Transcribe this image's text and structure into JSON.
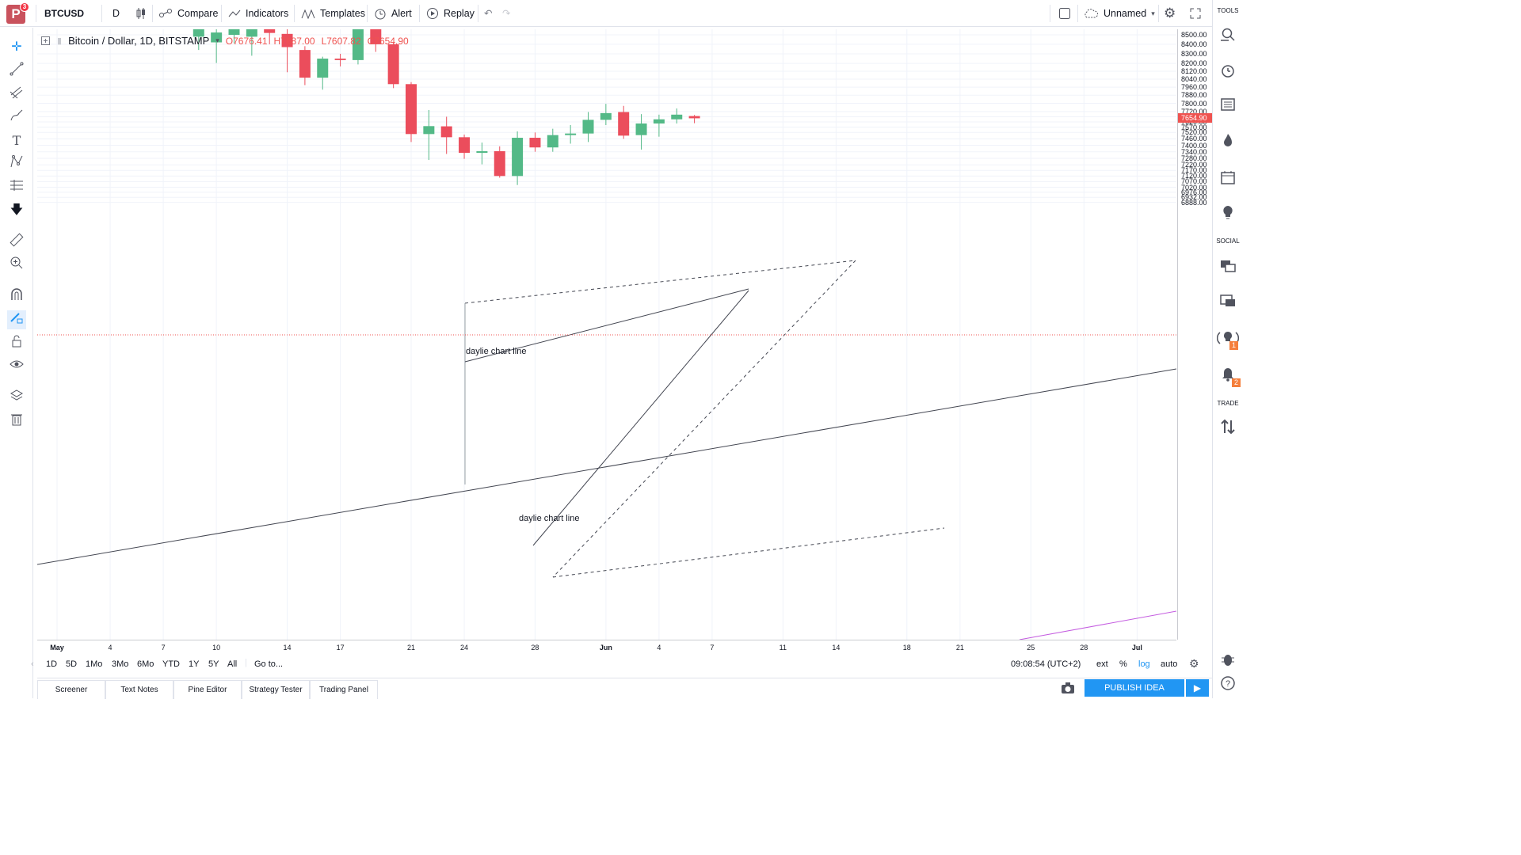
{
  "toolbar": {
    "logo_letter": "P",
    "logo_badge": "3",
    "symbol": "BTCUSD",
    "interval": "D",
    "compare_label": "Compare",
    "indicators_label": "Indicators",
    "templates_label": "Templates",
    "alert_label": "Alert",
    "replay_label": "Replay",
    "layout_name": "Unnamed"
  },
  "legend": {
    "title": "Bitcoin / Dollar, 1D, BITSTAMP",
    "open": "O7676.41",
    "high": "H7687.00",
    "low": "L7607.82",
    "close": "C7654.90"
  },
  "price_axis": {
    "labels": [
      "8500.00",
      "8400.00",
      "8300.00",
      "8200.00",
      "8120.00",
      "8040.00",
      "7960.00",
      "7880.00",
      "7800.00",
      "7720.00",
      "7670.00",
      "7620.00",
      "7570.00",
      "7520.00",
      "7460.00",
      "7400.00",
      "7340.00",
      "7280.00",
      "7220.00",
      "7170.00",
      "7120.00",
      "7070.00",
      "7020.00",
      "6976.00",
      "6932.00",
      "6888.00"
    ],
    "current": "7654.90"
  },
  "time_axis": {
    "labels": [
      "May",
      "4",
      "7",
      "10",
      "14",
      "17",
      "21",
      "24",
      "28",
      "Jun",
      "4",
      "7",
      "11",
      "14",
      "18",
      "21",
      "25",
      "28",
      "Jul"
    ]
  },
  "annotations": {
    "label1": "daylie chart line",
    "label2": "daylie chart line"
  },
  "range_bar": {
    "ranges": [
      "1D",
      "5D",
      "1Mo",
      "3Mo",
      "6Mo",
      "YTD",
      "1Y",
      "5Y",
      "All"
    ],
    "goto": "Go to...",
    "clock": "09:08:54 (UTC+2)",
    "ext": "ext",
    "pct": "%",
    "log": "log",
    "auto": "auto"
  },
  "bottom_tabs": [
    "Screener",
    "Text Notes",
    "Pine Editor",
    "Strategy Tester",
    "Trading Panel"
  ],
  "publish_label": "PUBLISH IDEA",
  "right_panel": {
    "tools_label": "TOOLS",
    "social_label": "SOCIAL",
    "trade_label": "TRADE",
    "badge_1": "1",
    "badge_2": "2"
  },
  "colors": {
    "up": "#53b987",
    "down": "#eb4d5c",
    "accent": "#2196f3",
    "price_line": "#ef5350",
    "purple_line": "#c45ce0"
  },
  "chart_data": {
    "type": "candlestick",
    "symbol": "BTCUSD",
    "interval": "1D",
    "exchange": "BITSTAMP",
    "scale": "log",
    "candles": [
      {
        "date": "2018-05-09",
        "open": 8480,
        "high": 8630,
        "low": 8340,
        "close": 8625
      },
      {
        "date": "2018-05-10",
        "open": 8420,
        "high": 8570,
        "low": 8205,
        "close": 8525
      },
      {
        "date": "2018-05-11",
        "open": 8500,
        "high": 8610,
        "low": 8410,
        "close": 8610
      },
      {
        "date": "2018-05-12",
        "open": 8480,
        "high": 8590,
        "low": 8280,
        "close": 8560
      },
      {
        "date": "2018-05-13",
        "open": 8560,
        "high": 8630,
        "low": 8400,
        "close": 8520
      },
      {
        "date": "2018-05-14",
        "open": 8510,
        "high": 8610,
        "low": 8110,
        "close": 8370
      },
      {
        "date": "2018-05-15",
        "open": 8340,
        "high": 8380,
        "low": 7980,
        "close": 8055
      },
      {
        "date": "2018-05-16",
        "open": 8055,
        "high": 8270,
        "low": 7935,
        "close": 8250
      },
      {
        "date": "2018-05-17",
        "open": 8250,
        "high": 8300,
        "low": 8170,
        "close": 8235
      },
      {
        "date": "2018-05-18",
        "open": 8235,
        "high": 8700,
        "low": 8190,
        "close": 8580
      },
      {
        "date": "2018-05-19",
        "open": 8580,
        "high": 8630,
        "low": 8320,
        "close": 8400
      },
      {
        "date": "2018-05-20",
        "open": 8400,
        "high": 8420,
        "low": 7950,
        "close": 7990
      },
      {
        "date": "2018-05-21",
        "open": 7990,
        "high": 8010,
        "low": 7430,
        "close": 7505
      },
      {
        "date": "2018-05-22",
        "open": 7505,
        "high": 7735,
        "low": 7265,
        "close": 7580
      },
      {
        "date": "2018-05-23",
        "open": 7578,
        "high": 7670,
        "low": 7320,
        "close": 7475
      },
      {
        "date": "2018-05-24",
        "open": 7475,
        "high": 7500,
        "low": 7275,
        "close": 7330
      },
      {
        "date": "2018-05-25",
        "open": 7330,
        "high": 7425,
        "low": 7225,
        "close": 7345
      },
      {
        "date": "2018-05-26",
        "open": 7345,
        "high": 7390,
        "low": 7105,
        "close": 7120
      },
      {
        "date": "2018-05-27",
        "open": 7120,
        "high": 7530,
        "low": 7040,
        "close": 7470
      },
      {
        "date": "2018-05-28",
        "open": 7470,
        "high": 7520,
        "low": 7340,
        "close": 7380
      },
      {
        "date": "2018-05-29",
        "open": 7380,
        "high": 7555,
        "low": 7340,
        "close": 7495
      },
      {
        "date": "2018-05-30",
        "open": 7495,
        "high": 7590,
        "low": 7415,
        "close": 7510
      },
      {
        "date": "2018-05-31",
        "open": 7510,
        "high": 7715,
        "low": 7430,
        "close": 7640
      },
      {
        "date": "2018-06-01",
        "open": 7640,
        "high": 7795,
        "low": 7590,
        "close": 7705
      },
      {
        "date": "2018-06-02",
        "open": 7715,
        "high": 7775,
        "low": 7460,
        "close": 7490
      },
      {
        "date": "2018-06-03",
        "open": 7495,
        "high": 7695,
        "low": 7360,
        "close": 7605
      },
      {
        "date": "2018-06-04",
        "open": 7605,
        "high": 7690,
        "low": 7480,
        "close": 7645
      },
      {
        "date": "2018-06-05",
        "open": 7645,
        "high": 7750,
        "low": 7605,
        "close": 7690
      },
      {
        "date": "2018-06-06",
        "open": 7676.41,
        "high": 7687,
        "low": 7607.82,
        "close": 7654.9
      }
    ]
  }
}
